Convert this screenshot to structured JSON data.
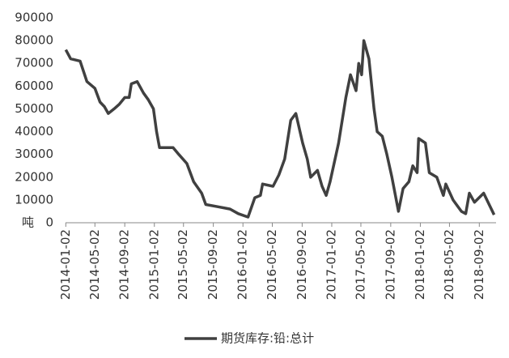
{
  "chart_data": {
    "type": "line",
    "y_unit": "吨",
    "x": [
      "2014-01-02",
      "2014-01-22",
      "2014-03-02",
      "2014-03-30",
      "2014-05-02",
      "2014-05-23",
      "2014-06-10",
      "2014-06-26",
      "2014-07-20",
      "2014-08-10",
      "2014-09-02",
      "2014-09-20",
      "2014-09-29",
      "2014-10-23",
      "2014-11-18",
      "2014-12-08",
      "2014-12-29",
      "2015-01-11",
      "2015-01-23",
      "2015-03-20",
      "2015-04-13",
      "2015-05-16",
      "2015-06-13",
      "2015-07-16",
      "2015-08-02",
      "2015-09-22",
      "2015-11-10",
      "2015-12-14",
      "2016-01-23",
      "2016-02-20",
      "2016-03-14",
      "2016-03-23",
      "2016-05-05",
      "2016-05-29",
      "2016-06-22",
      "2016-07-17",
      "2016-08-07",
      "2016-09-04",
      "2016-09-23",
      "2016-10-07",
      "2016-11-04",
      "2016-11-23",
      "2016-12-10",
      "2016-12-26",
      "2017-01-30",
      "2017-03-01",
      "2017-03-20",
      "2017-04-12",
      "2017-04-23",
      "2017-05-05",
      "2017-05-14",
      "2017-06-04",
      "2017-06-25",
      "2017-07-08",
      "2017-07-29",
      "2017-08-17",
      "2017-09-07",
      "2017-10-04",
      "2017-10-23",
      "2017-11-16",
      "2017-12-02",
      "2017-12-20",
      "2017-12-26",
      "2018-01-23",
      "2018-02-08",
      "2018-03-11",
      "2018-04-07",
      "2018-04-17",
      "2018-05-17",
      "2018-06-20",
      "2018-07-08",
      "2018-07-23",
      "2018-08-13",
      "2018-09-20",
      "2018-10-17",
      "2018-11-02"
    ],
    "series": [
      {
        "name": "期货库存:铅:总计",
        "color": "#404040",
        "values": [
          76000,
          72000,
          71000,
          62000,
          59000,
          53000,
          51000,
          48000,
          50000,
          52000,
          55000,
          55000,
          61000,
          62000,
          57000,
          54000,
          50000,
          40000,
          33000,
          33000,
          30000,
          26000,
          18000,
          13000,
          8000,
          7000,
          6000,
          4000,
          2500,
          11000,
          12000,
          17000,
          16000,
          21000,
          28000,
          45000,
          48000,
          35000,
          28000,
          20000,
          23000,
          16000,
          12000,
          18000,
          35000,
          55000,
          65000,
          58000,
          70000,
          65000,
          80000,
          72000,
          50000,
          40000,
          38000,
          30000,
          20000,
          5000,
          15000,
          18000,
          25000,
          22000,
          37000,
          35000,
          22000,
          20000,
          12000,
          17000,
          10000,
          5000,
          4000,
          13000,
          9000,
          13000,
          7000,
          3500
        ]
      }
    ],
    "xlim": [
      "2014-01-01",
      "2018-11-10"
    ],
    "xticks": [
      "2014-01-02",
      "2014-05-02",
      "2014-09-02",
      "2015-01-02",
      "2015-05-02",
      "2015-09-02",
      "2016-01-02",
      "2016-05-02",
      "2016-09-02",
      "2017-01-02",
      "2017-05-02",
      "2017-09-02",
      "2018-01-02",
      "2018-05-02",
      "2018-09-02"
    ],
    "ylim": [
      0,
      90000
    ],
    "yticks": [
      0,
      10000,
      20000,
      30000,
      40000,
      50000,
      60000,
      70000,
      80000,
      90000
    ],
    "grid": false,
    "legend": "bottom"
  }
}
